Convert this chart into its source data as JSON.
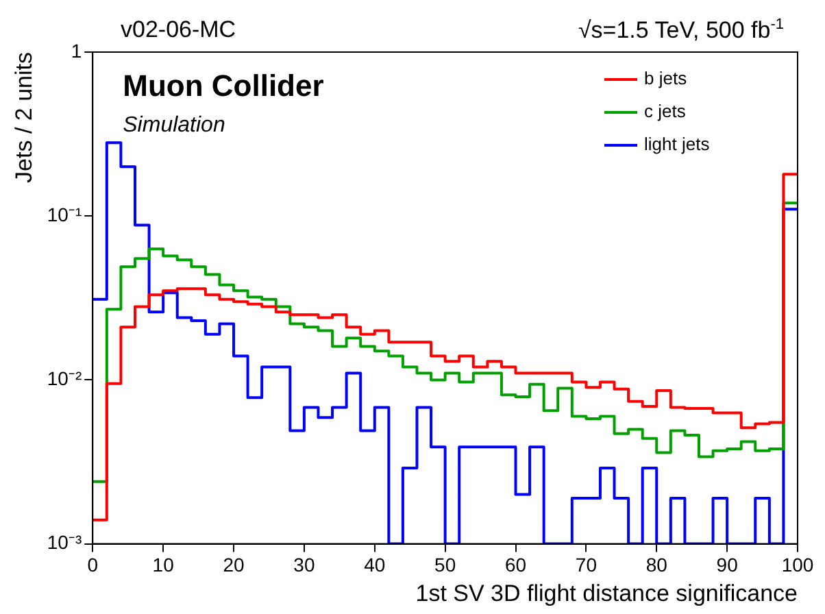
{
  "chart_data": {
    "type": "histogram",
    "title": "Muon Collider",
    "subtitle": "Simulation",
    "annotations": [
      "v02-06-MC",
      "√s=1.5 TeV, 500 fb$^{-1}$"
    ],
    "xlabel": "1st SV 3D flight distance significance",
    "ylabel": "Jets / 2 units",
    "bins": [
      0,
      2,
      4,
      6,
      8,
      10,
      12,
      14,
      16,
      18,
      20,
      22,
      24,
      26,
      28,
      30,
      32,
      34,
      36,
      38,
      40,
      42,
      44,
      46,
      48,
      50,
      52,
      54,
      56,
      58,
      60,
      62,
      64,
      66,
      68,
      70,
      72,
      74,
      76,
      78,
      80,
      82,
      84,
      86,
      88,
      90,
      92,
      94,
      96,
      98,
      100
    ],
    "series": [
      {
        "name": "b jets",
        "color": "#ff0000",
        "values": [
          0.0014,
          0.0095,
          0.021,
          0.028,
          0.033,
          0.035,
          0.036,
          0.036,
          0.033,
          0.031,
          0.03,
          0.029,
          0.028,
          0.026,
          0.025,
          0.025,
          0.024,
          0.025,
          0.021,
          0.019,
          0.02,
          0.017,
          0.017,
          0.017,
          0.014,
          0.013,
          0.014,
          0.012,
          0.013,
          0.012,
          0.011,
          0.011,
          0.011,
          0.011,
          0.0097,
          0.009,
          0.0097,
          0.0088,
          0.0074,
          0.0069,
          0.0086,
          0.0068,
          0.0067,
          0.0067,
          0.0063,
          0.0063,
          0.0051,
          0.0054,
          0.0055,
          0.18
        ]
      },
      {
        "name": "c jets",
        "color": "#00a000",
        "values": [
          0.0024,
          0.027,
          0.049,
          0.055,
          0.063,
          0.057,
          0.054,
          0.049,
          0.044,
          0.038,
          0.035,
          0.032,
          0.031,
          0.028,
          0.022,
          0.021,
          0.02,
          0.016,
          0.018,
          0.016,
          0.015,
          0.014,
          0.012,
          0.011,
          0.01,
          0.011,
          0.0097,
          0.011,
          0.011,
          0.0081,
          0.0079,
          0.0094,
          0.0065,
          0.0089,
          0.006,
          0.0058,
          0.006,
          0.0047,
          0.005,
          0.0044,
          0.0036,
          0.0049,
          0.0046,
          0.0034,
          0.0037,
          0.0038,
          0.0042,
          0.0037,
          0.0038,
          0.12
        ]
      },
      {
        "name": "light jets",
        "color": "#0000ff",
        "values": [
          0.031,
          0.28,
          0.2,
          0.088,
          0.026,
          0.034,
          0.024,
          0.023,
          0.019,
          0.022,
          0.014,
          0.0078,
          0.012,
          0.012,
          0.0049,
          0.0068,
          0.0059,
          0.0068,
          0.011,
          0.0049,
          0.0068,
          0.001,
          0.0029,
          0.0068,
          0.0039,
          0.001,
          0.0039,
          0.0039,
          0.0039,
          0.0039,
          0.002,
          0.0039,
          0.001,
          0.001,
          0.0019,
          0.0019,
          0.0029,
          0.0019,
          0.001,
          0.0029,
          0.001,
          0.0019,
          0.001,
          0.001,
          0.0019,
          0.001,
          0.001,
          0.0019,
          0.001,
          0.11
        ]
      }
    ],
    "log": "y",
    "xlim": [
      0,
      100
    ],
    "xticks": [
      0,
      10,
      20,
      30,
      40,
      50,
      60,
      70,
      80,
      90,
      100
    ],
    "ylim": [
      0.001,
      1
    ],
    "yticks": [
      {
        "value": 0.001,
        "label": "10⁻³"
      },
      {
        "value": 0.01,
        "label": "10⁻²"
      },
      {
        "value": 0.1,
        "label": "10⁻¹"
      },
      1
    ],
    "grid": false,
    "legend": "top right"
  }
}
